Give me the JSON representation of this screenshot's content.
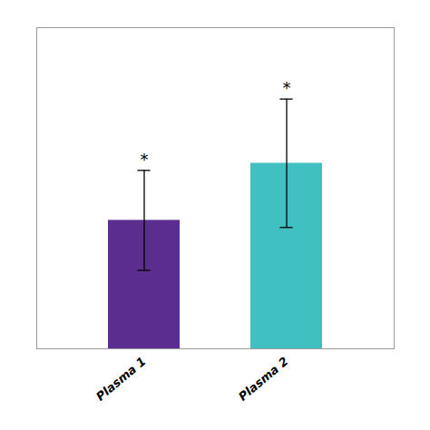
{
  "chart_data": {
    "type": "bar",
    "categories": [
      "Plasma 1",
      "Plasma 2"
    ],
    "values": [
      18,
      26
    ],
    "errors": [
      7,
      9
    ],
    "colors": [
      "#5B2D8E",
      "#40C0C0"
    ],
    "ylim": [
      0,
      45
    ],
    "tick_labels": "x",
    "grid": false,
    "annotations": [
      {
        "text": "*",
        "category": "Plasma 1"
      },
      {
        "text": "*",
        "category": "Plasma 2"
      }
    ]
  }
}
